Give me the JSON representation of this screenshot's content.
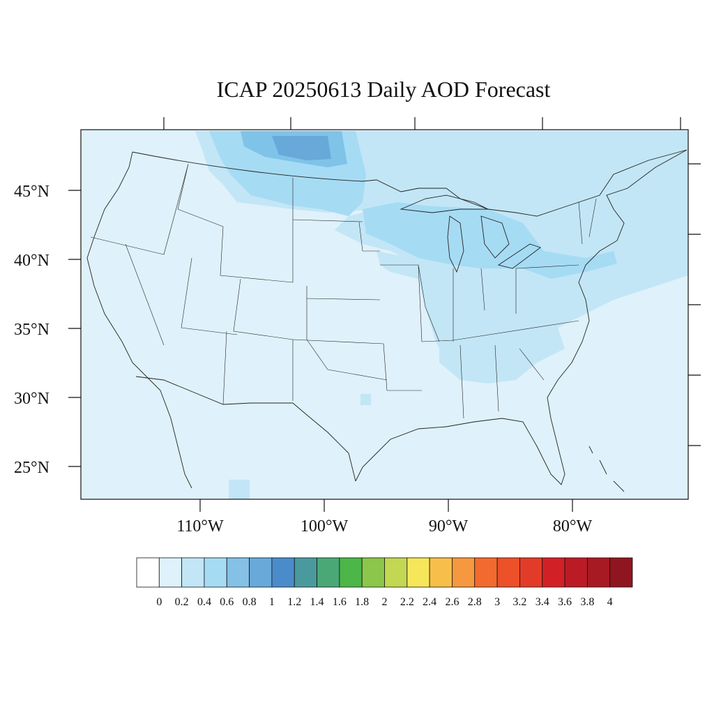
{
  "title": "ICAP 20250613 Daily AOD Forecast",
  "map": {
    "background_color": "#dff1fa",
    "latitude_labels": [
      "45°N",
      "40°N",
      "35°N",
      "30°N",
      "25°N"
    ],
    "longitude_labels": [
      "110°W",
      "100°W",
      "90°W",
      "80°W"
    ]
  },
  "aod_regions": [
    {
      "name": "northern-plains-band",
      "level": "0.2-0.4",
      "color": "#c2e6f6"
    },
    {
      "name": "north-dakota-plume",
      "level": "0.6-1",
      "color": "#7fc3e8"
    },
    {
      "name": "great-lakes-band",
      "level": "0.4-0.6",
      "color": "#a6dbf4"
    },
    {
      "name": "ohio-valley-band",
      "level": "0.2-0.4",
      "color": "#c2e6f6"
    },
    {
      "name": "southeast-band",
      "level": "0.2-0.4",
      "color": "#c2e6f6"
    },
    {
      "name": "northeast-atlantic-band",
      "level": "0.2-0.4",
      "color": "#c2e6f6"
    }
  ],
  "colorbar": {
    "labels": [
      "0",
      "0.2",
      "0.4",
      "0.6",
      "0.8",
      "1",
      "1.2",
      "1.4",
      "1.6",
      "1.8",
      "2",
      "2.2",
      "2.4",
      "2.6",
      "2.8",
      "3",
      "3.2",
      "3.4",
      "3.6",
      "3.8",
      "4"
    ],
    "colors": [
      "#ffffff",
      "#dff1fa",
      "#c2e6f6",
      "#a6dbf4",
      "#85c0e6",
      "#68a9da",
      "#4a8ccb",
      "#4a9a9d",
      "#4aa876",
      "#4cb649",
      "#8cc64b",
      "#c3d753",
      "#f6e65a",
      "#f7bf4a",
      "#f6983f",
      "#f26a2e",
      "#ec5129",
      "#e23c28",
      "#d32027",
      "#bb1b25",
      "#a81a23",
      "#8f1620"
    ]
  }
}
